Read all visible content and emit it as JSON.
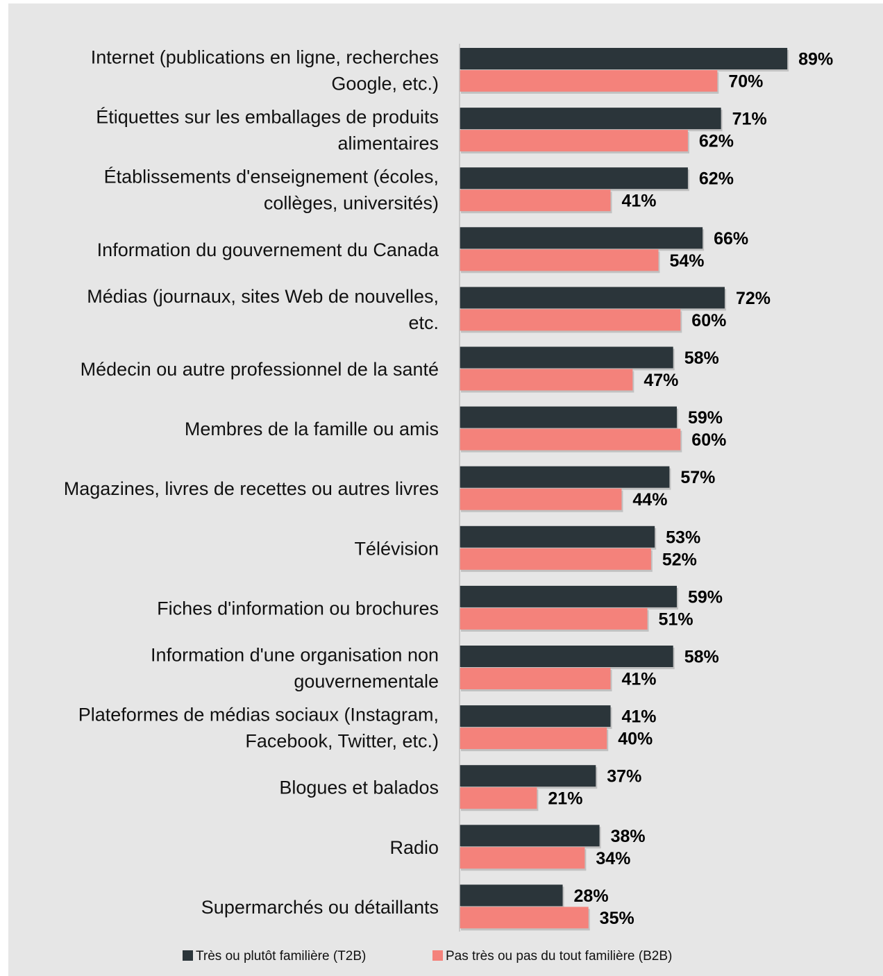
{
  "colors": {
    "panel_bg": "#e6e6e6",
    "axis": "#bfbfbf",
    "t2b": "#2b353a",
    "b2b": "#f4827b",
    "shadow": "#a8a8a8"
  },
  "chart_data": {
    "type": "bar",
    "orientation": "horizontal",
    "title": "",
    "xlabel": "",
    "ylabel": "",
    "xlim": [
      0,
      100
    ],
    "grid": false,
    "legend_position": "bottom",
    "value_suffix": "%",
    "categories": [
      [
        "Internet (publications en ligne, recherches",
        "Google, etc.)"
      ],
      [
        "Étiquettes sur les emballages de produits",
        "alimentaires"
      ],
      [
        "Établissements d'enseignement (écoles,",
        "collèges, universités)"
      ],
      [
        "Information du gouvernement du Canada"
      ],
      [
        "Médias (journaux, sites Web de nouvelles,",
        "etc."
      ],
      [
        "Médecin ou autre professionnel de la santé"
      ],
      [
        "Membres de la famille ou amis"
      ],
      [
        "Magazines, livres de recettes ou autres livres"
      ],
      [
        "Télévision"
      ],
      [
        "Fiches d'information ou brochures"
      ],
      [
        "Information d'une organisation non",
        "gouvernementale"
      ],
      [
        "Plateformes de médias sociaux (Instagram,",
        "Facebook, Twitter, etc.)"
      ],
      [
        "Blogues et balados"
      ],
      [
        "Radio"
      ],
      [
        "Supermarchés ou détaillants"
      ]
    ],
    "series": [
      {
        "name": "Très ou plutôt familière (T2B)",
        "color": "#2b353a",
        "values": [
          89,
          71,
          62,
          66,
          72,
          58,
          59,
          57,
          53,
          59,
          58,
          41,
          37,
          38,
          28
        ]
      },
      {
        "name": "Pas très ou pas du tout familière (B2B)",
        "color": "#f4827b",
        "values": [
          70,
          62,
          41,
          54,
          60,
          47,
          60,
          44,
          52,
          51,
          41,
          40,
          21,
          34,
          35
        ]
      }
    ]
  }
}
